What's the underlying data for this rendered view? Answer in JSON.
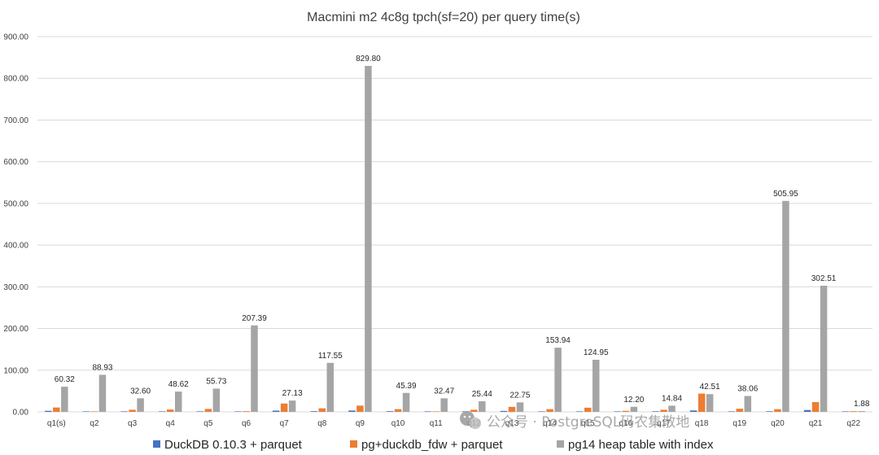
{
  "chart_data": {
    "type": "bar",
    "title": "Macmini m2 4c8g tpch(sf=20) per query time(s)",
    "xlabel": "",
    "ylabel": "",
    "ylim": [
      0,
      900
    ],
    "yticks": [
      "0.00",
      "100.00",
      "200.00",
      "300.00",
      "400.00",
      "500.00",
      "600.00",
      "700.00",
      "800.00",
      "900.00"
    ],
    "grid": true,
    "legend_position": "bottom",
    "categories": [
      "q1(s)",
      "q2",
      "q3",
      "q4",
      "q5",
      "q6",
      "q7",
      "q8",
      "q9",
      "q10",
      "q11",
      "q12",
      "q13",
      "q14",
      "q15",
      "q16",
      "q17",
      "q18",
      "q19",
      "q20",
      "q21",
      "q22"
    ],
    "series": [
      {
        "name": "DuckDB 0.10.3 + parquet",
        "color": "#4472c4",
        "values": [
          2.5,
          0.4,
          1.2,
          1.0,
          1.3,
          0.4,
          3.0,
          1.6,
          3.2,
          1.6,
          0.3,
          1.4,
          2.2,
          0.7,
          1.2,
          0.7,
          1.4,
          3.4,
          1.2,
          1.4,
          4.4,
          0.5
        ]
      },
      {
        "name": "pg+duckdb_fdw + parquet",
        "color": "#ed7d31",
        "values": [
          10.5,
          0.8,
          5.0,
          5.6,
          7.0,
          1.6,
          20.0,
          8.5,
          15.0,
          6.5,
          0.8,
          5.0,
          12.0,
          6.5,
          10.0,
          2.5,
          5.0,
          43.8,
          7.5,
          6.5,
          23.5,
          1.6
        ]
      },
      {
        "name": "pg14 heap table with index",
        "color": "#a5a5a5",
        "values": [
          60.32,
          88.93,
          32.6,
          48.62,
          55.73,
          207.39,
          27.13,
          117.55,
          829.8,
          45.39,
          32.47,
          25.44,
          22.75,
          153.94,
          124.95,
          12.2,
          14.84,
          42.51,
          38.06,
          505.95,
          302.51,
          1.88
        ],
        "labels": [
          "60.32",
          "88.93",
          "32.60",
          "48.62",
          "55.73",
          "207.39",
          "27.13",
          "117.55",
          "829.80",
          "45.39",
          "32.47",
          "25.44",
          "22.75",
          "153.94",
          "124.95",
          "12.20",
          "14.84",
          "42.51",
          "38.06",
          "505.95",
          "302.51",
          "1.88"
        ]
      }
    ]
  },
  "gridline_color": "#d9d9d9",
  "watermark": {
    "icon": "wechat-icon",
    "text": "公众号 · PostgreSQL码农集散地"
  }
}
